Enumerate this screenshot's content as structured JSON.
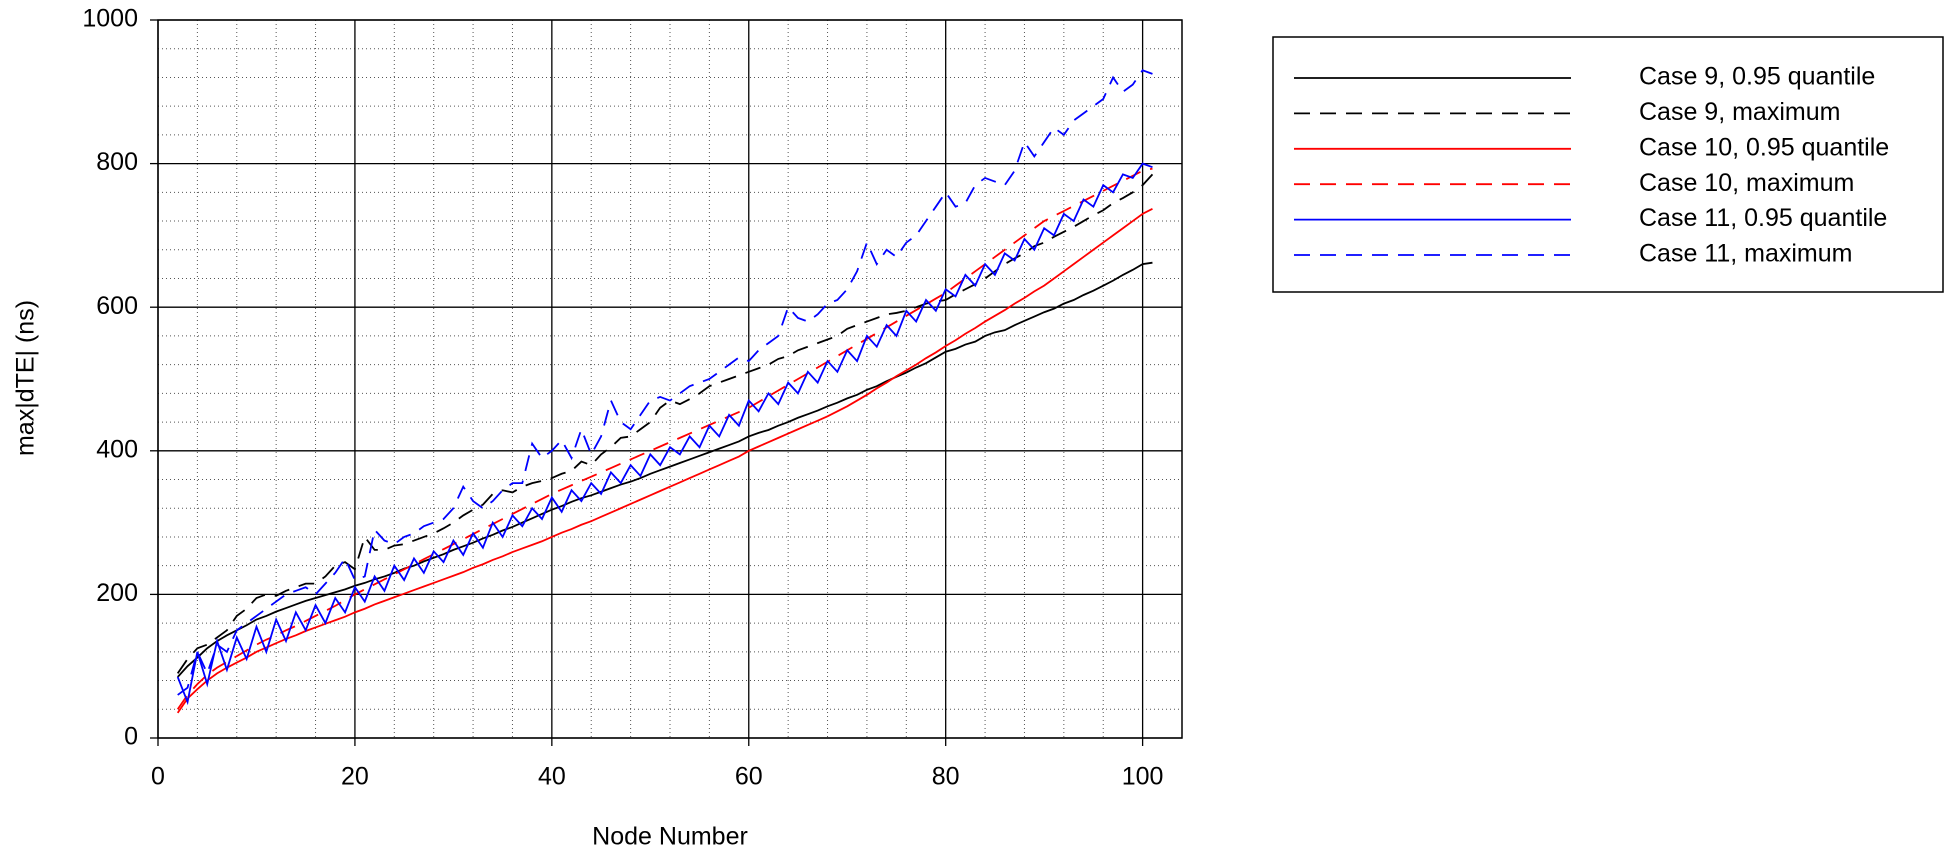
{
  "chart_data": {
    "type": "line",
    "xlabel": "Node Number",
    "ylabel": "max|dTE| (ns)",
    "x": [
      2,
      3,
      4,
      5,
      6,
      7,
      8,
      9,
      10,
      11,
      12,
      13,
      14,
      15,
      16,
      17,
      18,
      19,
      20,
      21,
      22,
      23,
      24,
      25,
      26,
      27,
      28,
      29,
      30,
      31,
      32,
      33,
      34,
      35,
      36,
      37,
      38,
      39,
      40,
      41,
      42,
      43,
      44,
      45,
      46,
      47,
      48,
      49,
      50,
      51,
      52,
      53,
      54,
      55,
      56,
      57,
      58,
      59,
      60,
      61,
      62,
      63,
      64,
      65,
      66,
      67,
      68,
      69,
      70,
      71,
      72,
      73,
      74,
      75,
      76,
      77,
      78,
      79,
      80,
      81,
      82,
      83,
      84,
      85,
      86,
      87,
      88,
      89,
      90,
      91,
      92,
      93,
      94,
      95,
      96,
      97,
      98,
      99,
      100,
      101
    ],
    "series": [
      {
        "name": "Case 9, 0.95 quantile",
        "color": "#000000",
        "style": "solid",
        "values": [
          85,
          100,
          112,
          125,
          135,
          143,
          150,
          157,
          165,
          170,
          176,
          181,
          186,
          191,
          195,
          199,
          203,
          207,
          212,
          216,
          221,
          225,
          230,
          236,
          240,
          246,
          251,
          256,
          262,
          267,
          272,
          278,
          283,
          289,
          294,
          300,
          306,
          312,
          318,
          323,
          329,
          334,
          338,
          343,
          348,
          353,
          357,
          362,
          368,
          373,
          378,
          383,
          388,
          393,
          398,
          403,
          408,
          413,
          420,
          425,
          429,
          435,
          440,
          446,
          451,
          456,
          462,
          467,
          473,
          478,
          485,
          490,
          497,
          503,
          509,
          516,
          522,
          530,
          538,
          542,
          548,
          552,
          560,
          565,
          568,
          575,
          581,
          587,
          593,
          598,
          605,
          610,
          617,
          623,
          630,
          637,
          645,
          652,
          660,
          662
        ]
      },
      {
        "name": "Case 9, maximum",
        "color": "#000000",
        "style": "dashed",
        "values": [
          90,
          110,
          125,
          130,
          140,
          150,
          170,
          180,
          195,
          200,
          198,
          205,
          210,
          215,
          215,
          225,
          240,
          245,
          235,
          280,
          262,
          262,
          268,
          270,
          275,
          280,
          285,
          292,
          300,
          310,
          318,
          325,
          340,
          345,
          342,
          350,
          355,
          358,
          362,
          368,
          372,
          385,
          380,
          395,
          405,
          418,
          420,
          430,
          440,
          460,
          470,
          465,
          472,
          480,
          490,
          495,
          500,
          505,
          510,
          515,
          520,
          528,
          532,
          540,
          545,
          550,
          555,
          560,
          570,
          575,
          580,
          585,
          590,
          592,
          595,
          600,
          605,
          608,
          610,
          618,
          625,
          632,
          640,
          650,
          660,
          668,
          675,
          685,
          690,
          698,
          705,
          712,
          720,
          728,
          735,
          745,
          752,
          760,
          770,
          785
        ]
      },
      {
        "name": "Case 10, 0.95 quantile",
        "color": "#ff0000",
        "style": "solid",
        "values": [
          35,
          55,
          68,
          80,
          90,
          98,
          105,
          112,
          120,
          126,
          132,
          138,
          143,
          149,
          154,
          159,
          164,
          169,
          175,
          180,
          186,
          191,
          196,
          201,
          206,
          211,
          216,
          221,
          226,
          231,
          237,
          242,
          248,
          253,
          259,
          264,
          269,
          274,
          280,
          286,
          291,
          297,
          302,
          308,
          314,
          320,
          326,
          332,
          338,
          344,
          350,
          356,
          362,
          368,
          374,
          380,
          386,
          392,
          400,
          406,
          412,
          418,
          424,
          430,
          436,
          442,
          448,
          455,
          462,
          470,
          478,
          487,
          495,
          504,
          512,
          520,
          529,
          537,
          546,
          554,
          563,
          571,
          580,
          588,
          596,
          605,
          613,
          622,
          630,
          640,
          650,
          660,
          670,
          680,
          690,
          700,
          710,
          720,
          730,
          737
        ]
      },
      {
        "name": "Case 10, maximum",
        "color": "#ff0000",
        "style": "dashed",
        "values": [
          40,
          60,
          75,
          88,
          98,
          106,
          114,
          122,
          130,
          137,
          143,
          150,
          156,
          163,
          170,
          177,
          184,
          192,
          200,
          207,
          214,
          221,
          228,
          235,
          242,
          249,
          256,
          263,
          270,
          277,
          284,
          291,
          298,
          305,
          312,
          319,
          326,
          333,
          340,
          346,
          352,
          358,
          364,
          370,
          376,
          382,
          388,
          394,
          400,
          406,
          412,
          418,
          424,
          430,
          436,
          442,
          448,
          454,
          460,
          468,
          476,
          484,
          492,
          500,
          508,
          516,
          524,
          532,
          540,
          548,
          556,
          564,
          572,
          580,
          588,
          596,
          604,
          612,
          620,
          630,
          640,
          650,
          660,
          670,
          680,
          690,
          700,
          710,
          720,
          727,
          734,
          741,
          748,
          755,
          762,
          769,
          776,
          783,
          790,
          793
        ]
      },
      {
        "name": "Case 11, 0.95 quantile",
        "color": "#0000ff",
        "style": "solid",
        "values": [
          85,
          50,
          120,
          75,
          135,
          95,
          140,
          110,
          155,
          120,
          165,
          135,
          175,
          150,
          185,
          160,
          195,
          175,
          210,
          190,
          225,
          205,
          240,
          220,
          250,
          230,
          260,
          245,
          275,
          255,
          285,
          265,
          300,
          280,
          310,
          295,
          320,
          305,
          335,
          315,
          345,
          330,
          355,
          340,
          370,
          355,
          380,
          365,
          395,
          380,
          405,
          395,
          420,
          405,
          435,
          420,
          450,
          435,
          470,
          455,
          480,
          465,
          495,
          480,
          510,
          495,
          525,
          510,
          540,
          525,
          560,
          545,
          575,
          560,
          595,
          580,
          610,
          595,
          625,
          615,
          645,
          630,
          660,
          645,
          675,
          665,
          695,
          680,
          710,
          700,
          730,
          720,
          750,
          740,
          770,
          760,
          785,
          780,
          800,
          795
        ]
      },
      {
        "name": "Case 11, maximum",
        "color": "#0000ff",
        "style": "dashed",
        "values": [
          60,
          70,
          120,
          90,
          130,
          120,
          150,
          160,
          170,
          180,
          190,
          200,
          205,
          210,
          200,
          215,
          230,
          250,
          220,
          225,
          290,
          275,
          270,
          280,
          285,
          295,
          300,
          305,
          320,
          350,
          330,
          320,
          330,
          345,
          355,
          355,
          410,
          390,
          400,
          415,
          390,
          430,
          395,
          420,
          470,
          440,
          430,
          450,
          470,
          475,
          470,
          480,
          490,
          495,
          500,
          510,
          520,
          530,
          525,
          540,
          550,
          560,
          600,
          585,
          580,
          590,
          605,
          610,
          625,
          650,
          690,
          660,
          680,
          670,
          690,
          700,
          720,
          740,
          760,
          740,
          745,
          770,
          780,
          775,
          770,
          790,
          830,
          810,
          830,
          850,
          840,
          860,
          870,
          880,
          890,
          920,
          900,
          910,
          930,
          925
        ]
      }
    ],
    "xlim": [
      0,
      104
    ],
    "xticks": [
      0,
      20,
      40,
      60,
      80,
      100
    ],
    "ylim": [
      0,
      1000
    ],
    "yticks": [
      0,
      200,
      400,
      600,
      800,
      1000
    ],
    "grid": true,
    "minor_grid": true,
    "legend": "outside-right"
  }
}
